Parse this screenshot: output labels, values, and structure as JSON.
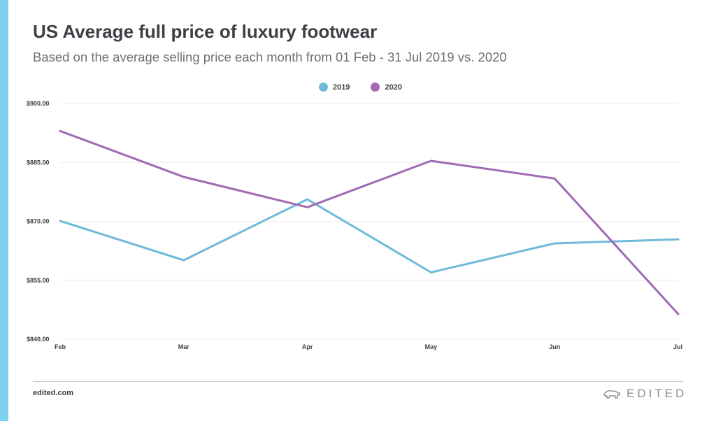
{
  "colors": {
    "accent": "#7fd1ef",
    "series_2019": "#6fbadb",
    "series_2020": "#a06ab4",
    "grid": "#ececec"
  },
  "header": {
    "title": "US Average full price of luxury footwear",
    "subtitle": "Based on the average selling price each month from 01 Feb - 31 Jul 2019 vs. 2020"
  },
  "footer": {
    "source": "edited.com",
    "brand": "EDITED",
    "brand_icon": "polar-bear-logo-icon"
  },
  "chart_data": {
    "type": "line",
    "categories": [
      "Feb",
      "Mar",
      "Apr",
      "May",
      "Jun",
      "Jul"
    ],
    "series": [
      {
        "name": "2019",
        "values": [
          870.1,
          860.1,
          875.6,
          857.0,
          864.4,
          865.4
        ]
      },
      {
        "name": "2020",
        "values": [
          893.0,
          881.3,
          873.6,
          885.4,
          880.9,
          846.4
        ]
      }
    ],
    "yticks": [
      840,
      855,
      870,
      885,
      900
    ],
    "ytick_labels": [
      "$840.00",
      "$855.00",
      "$870.00",
      "$885.00",
      "$900.00"
    ],
    "ylim": [
      840,
      900
    ],
    "grid": true,
    "legend": "top-center"
  }
}
